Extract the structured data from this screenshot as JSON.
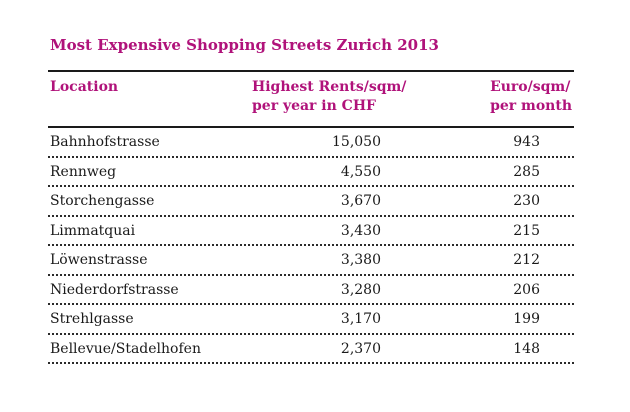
{
  "title": "Most Expensive Shopping Streets Zurich 2013",
  "columns": {
    "location": "Location",
    "chf_line1": "Highest Rents/sqm/",
    "chf_line2": "per year in CHF",
    "eur_line1": "Euro/sqm/",
    "eur_line2": "per month"
  },
  "rows": [
    {
      "location": "Bahnhofstrasse",
      "chf": "15,050",
      "eur": "943"
    },
    {
      "location": "Rennweg",
      "chf": "4,550",
      "eur": "285"
    },
    {
      "location": "Storchengasse",
      "chf": "3,670",
      "eur": "230"
    },
    {
      "location": "Limmatquai",
      "chf": "3,430",
      "eur": "215"
    },
    {
      "location": "Löwenstrasse",
      "chf": "3,380",
      "eur": "212"
    },
    {
      "location": "Niederdorfstrasse",
      "chf": "3,280",
      "eur": "206"
    },
    {
      "location": "Strehlgasse",
      "chf": "3,170",
      "eur": "199"
    },
    {
      "location": "Bellevue/Stadelhofen",
      "chf": "2,370",
      "eur": "148"
    }
  ],
  "colors": {
    "accent": "#b0127a",
    "text": "#1a1a1a"
  }
}
